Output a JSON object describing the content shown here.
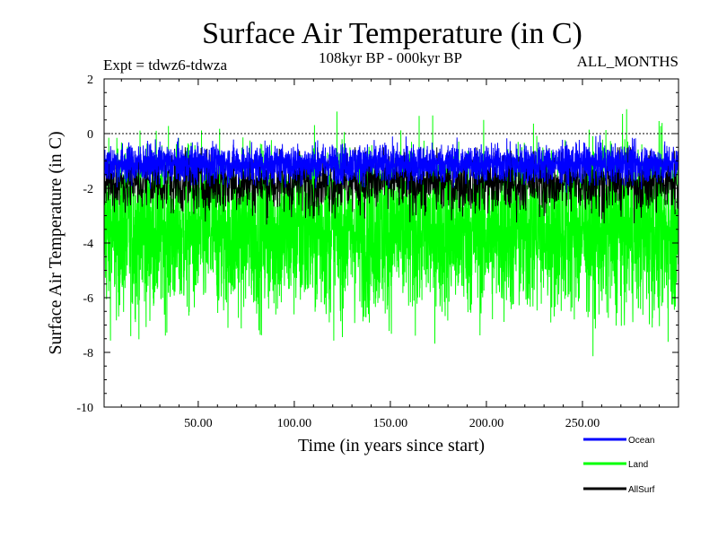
{
  "header": {
    "title": "Surface Air Temperature (in C)",
    "expt": "Expt = tdwz6-tdwza",
    "period": "108kyr BP - 000kyr BP",
    "months": "ALL_MONTHS"
  },
  "chart_data": {
    "type": "line",
    "title": "Surface Air Temperature (in C)",
    "xlabel": "Time (in years since start)",
    "ylabel": "Surface Air Temperature (in C)",
    "xlim": [
      1,
      300
    ],
    "ylim": [
      -10,
      2
    ],
    "x_ticks": [
      50,
      100,
      150,
      200,
      250
    ],
    "x_tick_labels": [
      "50.00",
      "100.00",
      "150.00",
      "200.00",
      "250.00"
    ],
    "y_ticks": [
      -10,
      -8,
      -6,
      -4,
      -2,
      0,
      2
    ],
    "y_tick_labels": [
      "-10",
      "-8",
      "-6",
      "-4",
      "-2",
      "0",
      "2"
    ],
    "reference_line": 0,
    "legend_position": "bottom-right, below plot",
    "series": [
      {
        "name": "Land",
        "color": "#00ff00",
        "approx_min": -8.9,
        "approx_max": 1.4,
        "approx_mean": -3.6
      },
      {
        "name": "Ocean",
        "color": "#0000ff",
        "approx_min": -2.2,
        "approx_max": 0.0,
        "approx_mean": -1.1
      },
      {
        "name": "AllSurf",
        "color": "#000000",
        "approx_min": -3.5,
        "approx_max": -0.5,
        "approx_mean": -1.8
      }
    ],
    "legend": [
      "Ocean",
      "Land",
      "AllSurf"
    ]
  }
}
